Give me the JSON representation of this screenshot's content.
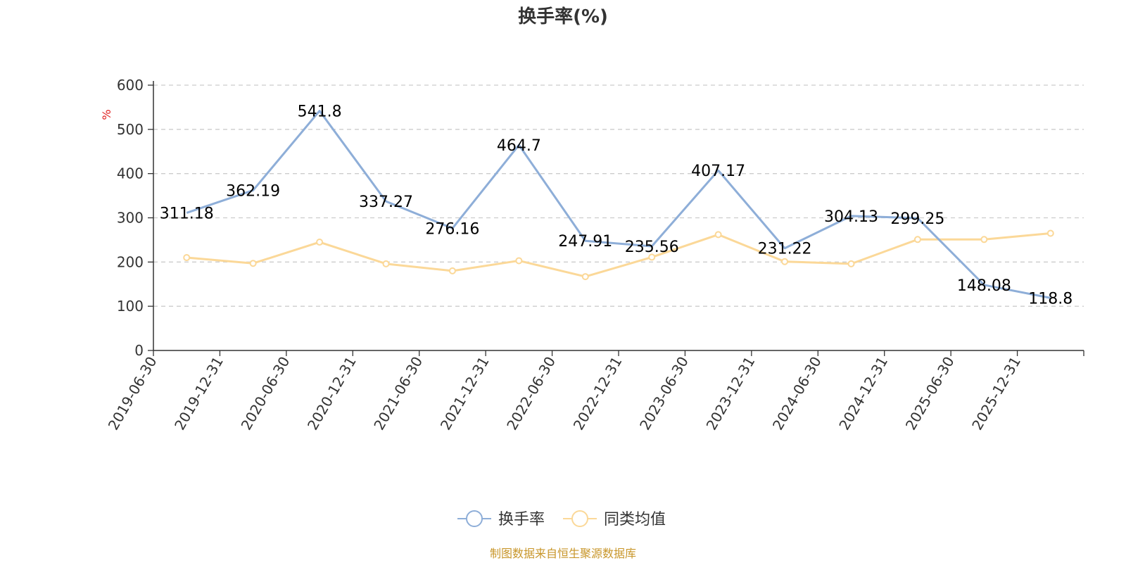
{
  "chart_data": {
    "type": "line",
    "title": "换手率(%)",
    "ylabel": "%",
    "xlabel": "",
    "ylim": [
      0,
      600
    ],
    "yticks": [
      0,
      100,
      200,
      300,
      400,
      500,
      600
    ],
    "grid": true,
    "legend_position": "bottom-center",
    "categories": [
      "2019-06-30",
      "2019-12-31",
      "2020-06-30",
      "2020-12-31",
      "2021-06-30",
      "2021-12-31",
      "2022-06-30",
      "2022-12-31",
      "2023-06-30",
      "2023-12-31",
      "2024-06-30",
      "2024-12-31",
      "2025-06-30",
      "2025-12-31"
    ],
    "series": [
      {
        "name": "换手率",
        "color": "#8eaed8",
        "values": [
          311.18,
          362.19,
          541.8,
          337.27,
          276.16,
          464.7,
          247.91,
          235.56,
          407.17,
          231.22,
          304.13,
          299.25,
          148.08,
          118.8
        ],
        "labels": [
          "311.18",
          "362.19",
          "541.8",
          "337.27",
          "276.16",
          "464.7",
          "247.91",
          "235.56",
          "407.17",
          "231.22",
          "304.13",
          "299.25",
          "148.08",
          "118.8"
        ]
      },
      {
        "name": "同类均值",
        "color": "#fbd898",
        "values": [
          210,
          197,
          245,
          196,
          180,
          203,
          167,
          211,
          262,
          201,
          196,
          251,
          251,
          265
        ]
      }
    ],
    "source": "制图数据来自恒生聚源数据库"
  }
}
